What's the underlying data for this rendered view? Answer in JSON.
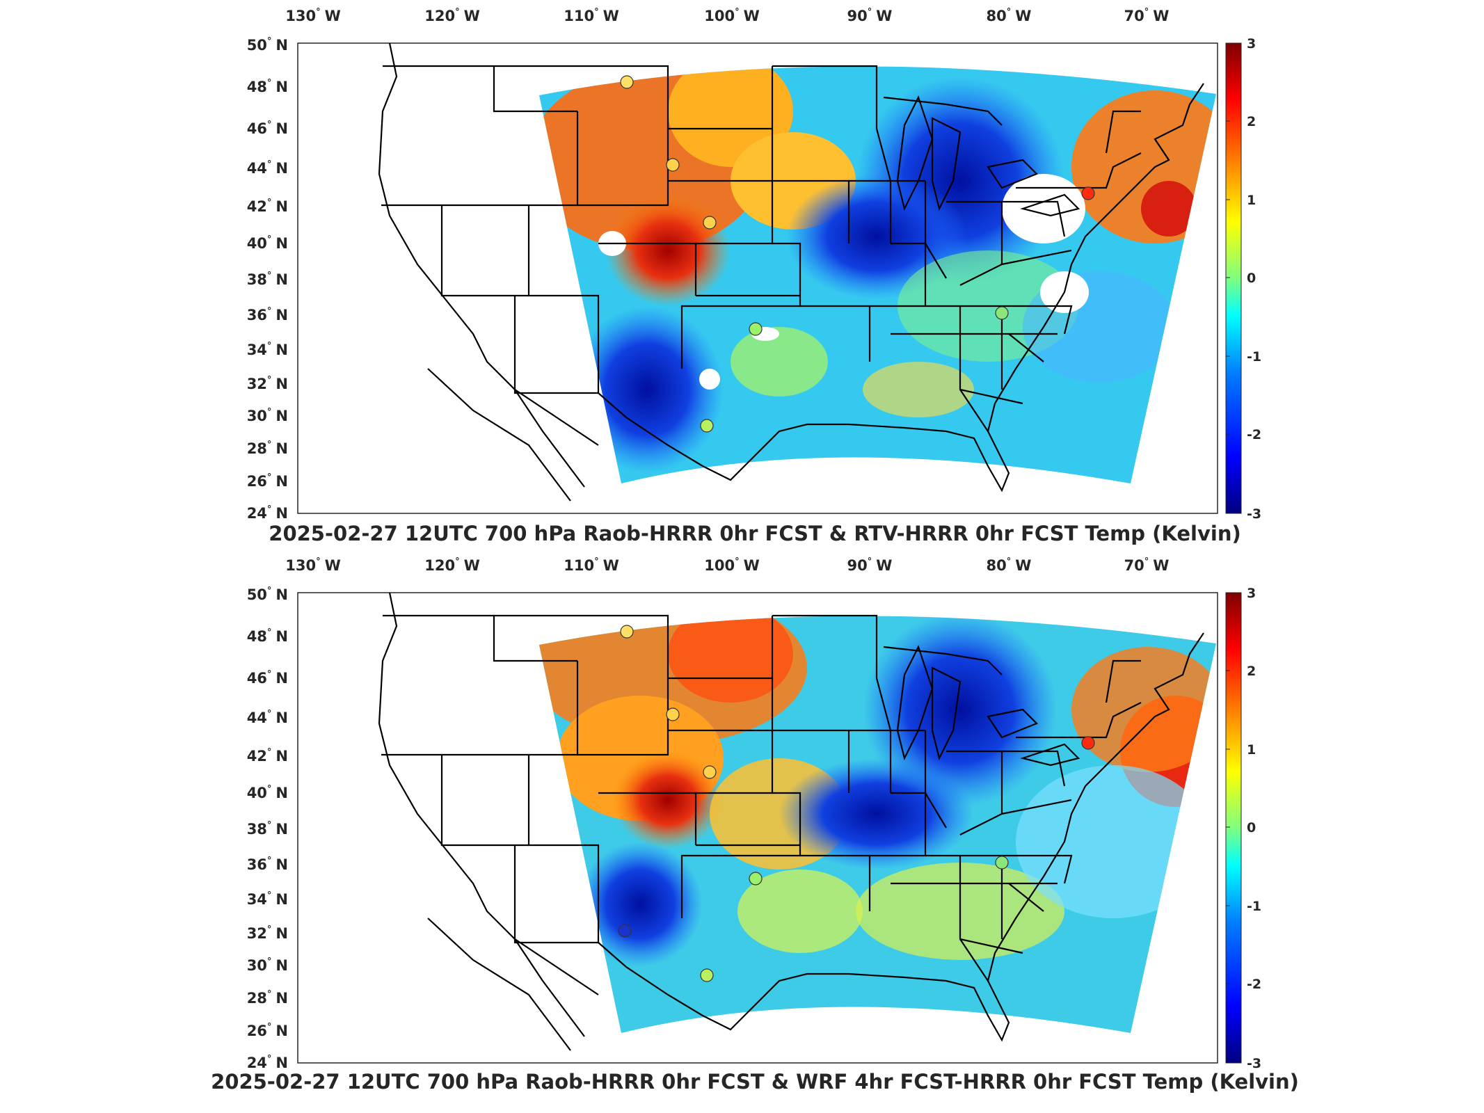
{
  "colorscale": {
    "ticks": [
      "3",
      "2",
      "1",
      "0",
      "-1",
      "-2",
      "-3"
    ],
    "stops": [
      "#00007f",
      "#0000ff",
      "#007fff",
      "#00ffff",
      "#7fff7f",
      "#ffff00",
      "#ff7f00",
      "#ff0000",
      "#7f0000"
    ]
  },
  "lon_labels": [
    {
      "deg": "130",
      "hem": "W"
    },
    {
      "deg": "120",
      "hem": "W"
    },
    {
      "deg": "110",
      "hem": "W"
    },
    {
      "deg": "100",
      "hem": "W"
    },
    {
      "deg": "90",
      "hem": "W"
    },
    {
      "deg": "80",
      "hem": "W"
    },
    {
      "deg": "70",
      "hem": "W"
    }
  ],
  "lat_labels": [
    {
      "deg": "50",
      "hem": "N"
    },
    {
      "deg": "48",
      "hem": "N"
    },
    {
      "deg": "46",
      "hem": "N"
    },
    {
      "deg": "44",
      "hem": "N"
    },
    {
      "deg": "42",
      "hem": "N"
    },
    {
      "deg": "40",
      "hem": "N"
    },
    {
      "deg": "38",
      "hem": "N"
    },
    {
      "deg": "36",
      "hem": "N"
    },
    {
      "deg": "34",
      "hem": "N"
    },
    {
      "deg": "32",
      "hem": "N"
    },
    {
      "deg": "30",
      "hem": "N"
    },
    {
      "deg": "28",
      "hem": "N"
    },
    {
      "deg": "26",
      "hem": "N"
    },
    {
      "deg": "24",
      "hem": "N"
    }
  ],
  "panels": [
    {
      "title": "2025-02-27 12UTC 700 hPa Raob-HRRR 0hr FCST & RTV-HRRR 0hr FCST Temp (Kelvin)",
      "stations": [
        {
          "name": "nw-montana",
          "color": "#ffe066"
        },
        {
          "name": "w-south-dakota",
          "color": "#ffd24d"
        },
        {
          "name": "nw-kansas",
          "color": "#ffd24d"
        },
        {
          "name": "oklahoma",
          "color": "#9cf06a"
        },
        {
          "name": "s-texas",
          "color": "#b8f060"
        },
        {
          "name": "n-carolina",
          "color": "#8ae87a"
        },
        {
          "name": "new-york",
          "color": "#ff2a10"
        }
      ]
    },
    {
      "title": "2025-02-27 12UTC 700 hPa Raob-HRRR 0hr FCST & WRF 4hr FCST-HRRR 0hr FCST Temp (Kelvin)",
      "stations": [
        {
          "name": "nw-montana",
          "color": "#ffe066"
        },
        {
          "name": "w-south-dakota",
          "color": "#ffd24d"
        },
        {
          "name": "nw-kansas",
          "color": "#ffd24d"
        },
        {
          "name": "oklahoma",
          "color": "#9cf06a"
        },
        {
          "name": "s-texas",
          "color": "#b8f060"
        },
        {
          "name": "n-carolina",
          "color": "#8ae87a"
        },
        {
          "name": "new-york",
          "color": "#ff2a10"
        },
        {
          "name": "w-texas",
          "color": "#1a33cc"
        }
      ]
    }
  ]
}
